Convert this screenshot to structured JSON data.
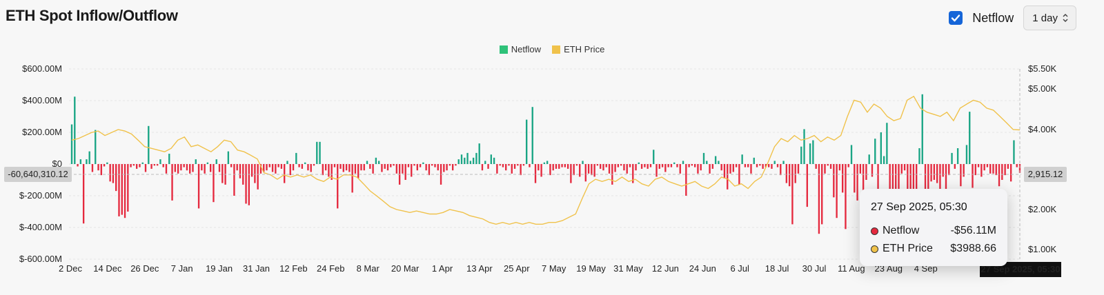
{
  "header": {
    "title": "ETH Spot Inflow/Outflow",
    "netflow_toggle_label": "Netflow",
    "netflow_toggle_checked": true,
    "interval_select_value": "1 day"
  },
  "colors": {
    "netflow_positive": "#1aa585",
    "netflow_negative": "#e5293e",
    "price_line": "#f0c24b",
    "legend_netflow": "#2fc279",
    "legend_price": "#f0c24b",
    "checkbox": "#1565d8"
  },
  "crosshair": {
    "left_value_label": "-60,640,310.12",
    "right_value_label": "2,915.12",
    "x_label": "27 Sep 2025, 05:30"
  },
  "tooltip": {
    "date": "27 Sep 2025, 05:30",
    "rows": [
      {
        "label": "Netflow",
        "value": "-$56.11M",
        "color": "#e5293e"
      },
      {
        "label": "ETH Price",
        "value": "$3988.66",
        "color": "#f0c24b"
      }
    ]
  },
  "chart_data": {
    "type": "bar",
    "legend": [
      "Netflow",
      "ETH Price"
    ],
    "legend_position": "top-center",
    "x_tick_labels": [
      "2 Dec",
      "14 Dec",
      "26 Dec",
      "7 Jan",
      "19 Jan",
      "31 Jan",
      "12 Feb",
      "24 Feb",
      "8 Mar",
      "20 Mar",
      "1 Apr",
      "13 Apr",
      "25 Apr",
      "7 May",
      "19 May",
      "31 May",
      "12 Jun",
      "24 Jun",
      "6 Jul",
      "18 Jul",
      "30 Jul",
      "11 Aug",
      "23 Aug",
      "4 Sep"
    ],
    "y_left": {
      "ticks": [
        "$600.00M",
        "$400.00M",
        "$200.00M",
        "$0",
        "$-200.00M",
        "$-400.00M",
        "$-600.00M"
      ],
      "range": [
        -600,
        600
      ],
      "unit": "M USD"
    },
    "y_right": {
      "ticks": [
        "$5.50K",
        "$5.00K",
        "$4.00K",
        "$2.00K",
        "$1.00K"
      ]
    },
    "grid": true,
    "series": [
      {
        "name": "Netflow",
        "type": "bar",
        "unit": "M USD",
        "values": [
          250,
          425,
          -15,
          30,
          -375,
          30,
          80,
          -50,
          215,
          -40,
          -70,
          -15,
          10,
          -110,
          -120,
          -170,
          -330,
          -320,
          -340,
          -300,
          -20,
          -10,
          -30,
          -20,
          10,
          -50,
          240,
          -30,
          -10,
          -10,
          30,
          -20,
          -60,
          65,
          -230,
          -50,
          -60,
          -40,
          -20,
          -40,
          -60,
          -50,
          30,
          -280,
          -40,
          -60,
          10,
          -50,
          -240,
          30,
          -50,
          -120,
          -130,
          80,
          -20,
          -200,
          -40,
          -90,
          -130,
          -250,
          -260,
          -80,
          -120,
          -160,
          -60,
          -50,
          -40,
          -20,
          -50,
          -60,
          -20,
          -30,
          -120,
          20,
          -70,
          -40,
          70,
          -20,
          -30,
          10,
          -40,
          -50,
          -10,
          140,
          140,
          -70,
          -40,
          -80,
          -100,
          -20,
          -280,
          -30,
          -50,
          -40,
          -50,
          -180,
          -60,
          -90,
          -40,
          -40,
          20,
          -30,
          -60,
          40,
          20,
          -50,
          -30,
          -40,
          -20,
          -10,
          -60,
          -130,
          -60,
          -100,
          -20,
          -80,
          -10,
          -40,
          -20,
          10,
          -40,
          -70,
          -10,
          -20,
          -40,
          -130,
          -50,
          -40,
          -10,
          -40,
          -10,
          30,
          60,
          40,
          70,
          20,
          40,
          70,
          130,
          -40,
          20,
          -30,
          60,
          40,
          -60,
          -10,
          -20,
          -40,
          -10,
          -60,
          -30,
          -10,
          -70,
          -10,
          280,
          -20,
          360,
          -120,
          -40,
          -80,
          10,
          20,
          -70,
          -40,
          -30,
          -30,
          -20,
          -20,
          -30,
          -120,
          -70,
          -10,
          -80,
          20,
          -110,
          -60,
          -70,
          -80,
          -10,
          -30,
          -40,
          -20,
          -60,
          -130,
          -50,
          -20,
          -10,
          -40,
          -60,
          -20,
          -120,
          -40,
          10,
          -30,
          -20,
          -30,
          -20,
          90,
          -80,
          -30,
          -20,
          -50,
          -20,
          -20,
          10,
          -20,
          -60,
          20,
          -200,
          -20,
          -10,
          -20,
          -60,
          -40,
          70,
          20,
          -60,
          -30,
          50,
          20,
          -40,
          -90,
          -160,
          -60,
          -50,
          -20,
          -130,
          60,
          -20,
          -20,
          -60,
          40,
          -20,
          -10,
          -30,
          -20,
          -20,
          -30,
          20,
          -20,
          -70,
          20,
          -120,
          -140,
          -380,
          -120,
          -60,
          110,
          220,
          -270,
          130,
          150,
          -30,
          -440,
          -380,
          -60,
          -10,
          -30,
          -210,
          -340,
          -40,
          -180,
          -410,
          -20,
          120,
          -180,
          -230,
          -60,
          -260,
          -100,
          60,
          -80,
          160,
          -180,
          200,
          50,
          260,
          -180,
          -220,
          -320,
          -230,
          -60,
          -40,
          -260,
          -200,
          -170,
          -160,
          100,
          440,
          -240,
          -180,
          -110,
          -100,
          -120,
          -160,
          -80,
          -200,
          -70,
          70,
          -30,
          100,
          -140,
          -80,
          120,
          330,
          -150,
          -70,
          -20,
          -80,
          -40,
          -20,
          -60,
          -60,
          -70,
          -140,
          -100,
          -70,
          -30,
          -110,
          150,
          -20,
          -56.11
        ]
      },
      {
        "name": "ETH Price",
        "type": "line",
        "values": [
          3650,
          3700,
          3800,
          3900,
          3950,
          3800,
          3900,
          4000,
          3950,
          3850,
          3650,
          3450,
          3400,
          3350,
          3300,
          3400,
          3650,
          3750,
          3450,
          3500,
          3400,
          3300,
          3450,
          3650,
          3600,
          3350,
          3300,
          3200,
          3100,
          2750,
          2700,
          2600,
          2700,
          2650,
          2700,
          2650,
          2700,
          2600,
          2550,
          2650,
          2600,
          2700,
          2700,
          2650,
          2500,
          2350,
          2250,
          2150,
          2050,
          2000,
          1950,
          1900,
          1950,
          1900,
          1850,
          1850,
          1900,
          2000,
          1950,
          1900,
          1800,
          1750,
          1700,
          1600,
          1550,
          1600,
          1550,
          1600,
          1550,
          1600,
          1550,
          1550,
          1600,
          1600,
          1650,
          1750,
          1850,
          2200,
          2500,
          2600,
          2550,
          2600,
          2550,
          2650,
          2550,
          2600,
          2500,
          2450,
          2600,
          2650,
          2550,
          2500,
          2450,
          2500,
          2550,
          2450,
          2400,
          2500,
          2650,
          2600,
          2450,
          2500,
          2400,
          2550,
          2650,
          3000,
          3450,
          3700,
          3600,
          3800,
          3650,
          3700,
          3800,
          3600,
          3750,
          3650,
          3800,
          4300,
          4700,
          4650,
          4400,
          4600,
          4500,
          4300,
          4200,
          4250,
          4700,
          4800,
          4500,
          4400,
          4350,
          4300,
          4400,
          4200,
          4500,
          4600,
          4700,
          4650,
          4500,
          4450,
          4300,
          4150,
          4000,
          3988.66
        ]
      }
    ]
  }
}
